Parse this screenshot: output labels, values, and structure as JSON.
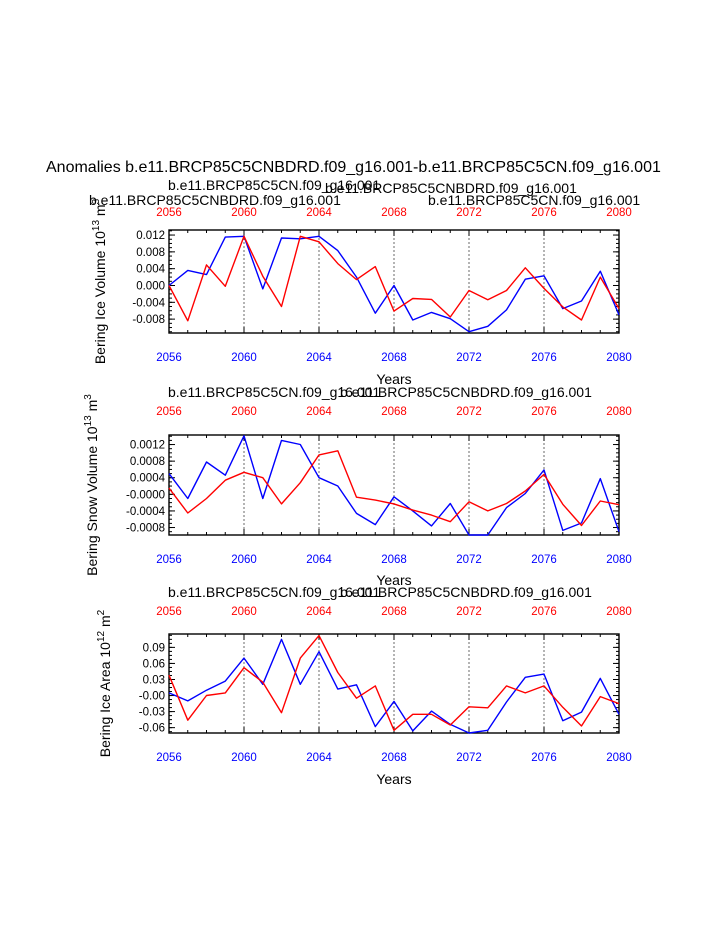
{
  "page_title": "Anomalies b.e11.BRCP85C5CNBDRD.f09_g16.001-b.e11.BRCP85C5CN.f09_g16.001",
  "colors": {
    "blue": "#0000ff",
    "red": "#ff0000",
    "axis": "#000000"
  },
  "chart_data": [
    {
      "type": "line",
      "title_blue": "b.e11.BRCP85C5CNBDRD.f09_g16.001",
      "title_red": "b.e11.BRCP85C5CN.f09_g16.001",
      "title_overlap_blue": "b.e11.BRCP85C5CNBDRD.f09_g16.001",
      "title_overlap_red": "b.e11.BRCP85C5CN.f09_g16.001",
      "xlabel": "Years",
      "ylabel_prefix": "Bering Ice Volume 10",
      "ylabel_exp": "13",
      "ylabel_unit": " m",
      "ylabel_unit_exp": "3",
      "xlim": [
        2056,
        2080
      ],
      "ylim": [
        -0.0113,
        0.0132
      ],
      "yticks": [
        0.012,
        0.008,
        0.004,
        0.0,
        -0.004,
        -0.008
      ],
      "ytick_labels": [
        "0.012",
        "0.008",
        "0.004",
        "0.000",
        "-0.004",
        "-0.008"
      ],
      "xticks": [
        2056,
        2060,
        2064,
        2068,
        2072,
        2076,
        2080
      ],
      "xtick_labels": [
        "2056",
        "2060",
        "2064",
        "2068",
        "2072",
        "2076",
        "2080"
      ],
      "x": [
        2056,
        2057,
        2058,
        2059,
        2060,
        2061,
        2062,
        2063,
        2064,
        2065,
        2066,
        2067,
        2068,
        2069,
        2070,
        2071,
        2072,
        2073,
        2074,
        2075,
        2076,
        2077,
        2078,
        2079,
        2080
      ],
      "series": [
        {
          "name": "b.e11.BRCP85C5CNBDRD.f09_g16.001",
          "color": "#0000ff",
          "values": [
            0.0,
            0.0036,
            0.0026,
            0.0115,
            0.0117,
            -0.0008,
            0.0113,
            0.0111,
            0.0117,
            0.0083,
            0.002,
            -0.0066,
            0.0,
            -0.0082,
            -0.0064,
            -0.0079,
            -0.011,
            -0.0097,
            -0.0058,
            0.0015,
            0.0023,
            -0.0055,
            -0.0037,
            0.0034,
            -0.007
          ]
        },
        {
          "name": "b.e11.BRCP85C5CN.f09_g16.001",
          "color": "#ff0000",
          "values": [
            0.0,
            -0.0084,
            0.0049,
            -0.0002,
            0.0117,
            0.0022,
            -0.005,
            0.0117,
            0.0104,
            0.0052,
            0.0014,
            0.0045,
            -0.0061,
            -0.0031,
            -0.0033,
            -0.0075,
            -0.0012,
            -0.0034,
            -0.0012,
            0.0042,
            -0.0007,
            -0.0051,
            -0.0082,
            0.002,
            -0.0055
          ]
        }
      ]
    },
    {
      "type": "line",
      "title_blue": "b.e11.BRCP85C5CNBDRD.f09_g16.001",
      "title_red": "b.e11.BRCP85C5CN.f09_g16.001",
      "xlabel": "Years",
      "ylabel_prefix": "Bering Snow Volume 10",
      "ylabel_exp": "13",
      "ylabel_unit": " m",
      "ylabel_unit_exp": "3",
      "xlim": [
        2056,
        2080
      ],
      "ylim": [
        -0.00098,
        0.00143
      ],
      "yticks": [
        0.0012,
        0.0008,
        0.0004,
        0.0,
        -0.0004,
        -0.0008
      ],
      "ytick_labels": [
        "0.0012",
        "0.0008",
        "0.0004",
        "-0.0000",
        "-0.0004",
        "-0.0008"
      ],
      "xticks": [
        2056,
        2060,
        2064,
        2068,
        2072,
        2076,
        2080
      ],
      "xtick_labels": [
        "2056",
        "2060",
        "2064",
        "2068",
        "2072",
        "2076",
        "2080"
      ],
      "x": [
        2056,
        2057,
        2058,
        2059,
        2060,
        2061,
        2062,
        2063,
        2064,
        2065,
        2066,
        2067,
        2068,
        2069,
        2070,
        2071,
        2072,
        2073,
        2074,
        2075,
        2076,
        2077,
        2078,
        2079,
        2080
      ],
      "series": [
        {
          "name": "b.e11.BRCP85C5CNBDRD.f09_g16.001",
          "color": "#0000ff",
          "values": [
            0.0005,
            -0.0001,
            0.00078,
            0.00046,
            0.00141,
            -0.0001,
            0.0013,
            0.0012,
            0.0004,
            0.0002,
            -0.00046,
            -0.00073,
            -6e-05,
            -0.0004,
            -0.00076,
            -0.00022,
            -0.00098,
            -0.00098,
            -0.00032,
            2e-05,
            0.00059,
            -0.00087,
            -0.00069,
            0.00038,
            -0.0009
          ]
        },
        {
          "name": "b.e11.BRCP85C5CN.f09_g16.001",
          "color": "#ff0000",
          "values": [
            0.00015,
            -0.00045,
            -0.0001,
            0.00034,
            0.00053,
            0.0004,
            -0.00023,
            0.00028,
            0.00095,
            0.00105,
            -7e-05,
            -0.00014,
            -0.00023,
            -0.00038,
            -0.0005,
            -0.00066,
            -0.00018,
            -0.0004,
            -0.00022,
            8e-05,
            0.00048,
            -0.00024,
            -0.00075,
            -0.00016,
            -0.00025
          ]
        }
      ]
    },
    {
      "type": "line",
      "title_blue": "b.e11.BRCP85C5CNBDRD.f09_g16.001",
      "title_red": "b.e11.BRCP85C5CN.f09_g16.001",
      "xlabel": "Years",
      "ylabel_prefix": "Bering Ice Area 10",
      "ylabel_exp": "12",
      "ylabel_unit": " m",
      "ylabel_unit_exp": "2",
      "xlim": [
        2056,
        2080
      ],
      "ylim": [
        -0.07,
        0.115
      ],
      "yticks": [
        0.09,
        0.06,
        0.03,
        0.0,
        -0.03,
        -0.06
      ],
      "ytick_labels": [
        "0.09",
        "0.06",
        "0.03",
        "-0.00",
        "-0.03",
        "-0.06"
      ],
      "xticks": [
        2056,
        2060,
        2064,
        2068,
        2072,
        2076,
        2080
      ],
      "xtick_labels": [
        "2056",
        "2060",
        "2064",
        "2068",
        "2072",
        "2076",
        "2080"
      ],
      "x": [
        2056,
        2057,
        2058,
        2059,
        2060,
        2061,
        2062,
        2063,
        2064,
        2065,
        2066,
        2067,
        2068,
        2069,
        2070,
        2071,
        2072,
        2073,
        2074,
        2075,
        2076,
        2077,
        2078,
        2079,
        2080
      ],
      "series": [
        {
          "name": "b.e11.BRCP85C5CNBDRD.f09_g16.001",
          "color": "#0000ff",
          "values": [
            0.005,
            -0.01,
            0.01,
            0.027,
            0.07,
            0.021,
            0.105,
            0.021,
            0.082,
            0.012,
            0.02,
            -0.058,
            -0.011,
            -0.066,
            -0.029,
            -0.054,
            -0.07,
            -0.065,
            -0.012,
            0.034,
            0.04,
            -0.047,
            -0.031,
            0.032,
            -0.035
          ]
        },
        {
          "name": "b.e11.BRCP85C5CN.f09_g16.001",
          "color": "#ff0000",
          "values": [
            0.038,
            -0.046,
            0.0,
            0.005,
            0.052,
            0.025,
            -0.032,
            0.07,
            0.112,
            0.043,
            -0.005,
            0.018,
            -0.065,
            -0.035,
            -0.035,
            -0.055,
            -0.021,
            -0.023,
            0.018,
            0.005,
            0.018,
            -0.022,
            -0.057,
            -0.002,
            -0.015
          ]
        }
      ]
    }
  ]
}
